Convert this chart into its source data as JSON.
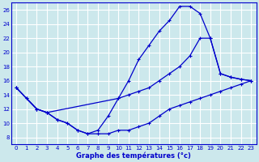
{
  "xlabel": "Graphe des températures (°c)",
  "xlim": [
    -0.5,
    23.5
  ],
  "ylim": [
    7,
    27
  ],
  "yticks": [
    8,
    10,
    12,
    14,
    16,
    18,
    20,
    22,
    24,
    26
  ],
  "xticks": [
    0,
    1,
    2,
    3,
    4,
    5,
    6,
    7,
    8,
    9,
    10,
    11,
    12,
    13,
    14,
    15,
    16,
    17,
    18,
    19,
    20,
    21,
    22,
    23
  ],
  "bg_color": "#cce8ec",
  "grid_color": "#ffffff",
  "line_color": "#0000cc",
  "curve1_x": [
    0,
    1,
    2,
    3,
    4,
    5,
    6,
    7,
    8,
    9,
    10,
    11,
    12,
    13,
    14,
    15,
    16,
    17,
    18,
    19,
    20,
    21,
    22,
    23
  ],
  "curve1_y": [
    15,
    13.5,
    12,
    11.5,
    10.5,
    10,
    9,
    8.5,
    9,
    11,
    13.5,
    16,
    19,
    21,
    23,
    24.5,
    26.5,
    26.5,
    25.5,
    22,
    17,
    16.5,
    16.2,
    16
  ],
  "curve2_x": [
    0,
    2,
    3,
    10,
    11,
    12,
    13,
    14,
    15,
    16,
    17,
    18,
    19,
    20,
    21,
    22,
    23
  ],
  "curve2_y": [
    15,
    12,
    11.5,
    13.5,
    14,
    14.5,
    15,
    16,
    17,
    18,
    19.5,
    22,
    22,
    17,
    16.5,
    16.2,
    16
  ],
  "curve3_x": [
    0,
    1,
    2,
    3,
    4,
    5,
    6,
    7,
    8,
    9,
    10,
    11,
    12,
    13,
    14,
    15,
    16,
    17,
    18,
    19,
    20,
    21,
    22,
    23
  ],
  "curve3_y": [
    15,
    13.5,
    12,
    11.5,
    10.5,
    10,
    9,
    8.5,
    8.5,
    8.5,
    9,
    9,
    9.5,
    10,
    11,
    12,
    12.5,
    13,
    13.5,
    14,
    14.5,
    15,
    15.5,
    16
  ]
}
